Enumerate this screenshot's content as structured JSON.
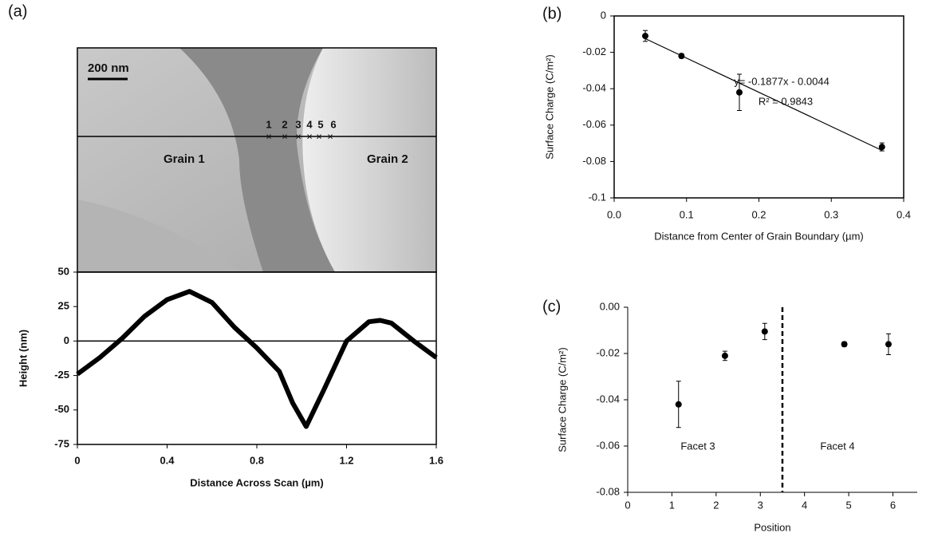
{
  "image": {
    "scale_bar": "200 nm",
    "labels": [
      "Grain 1",
      "Grain 2"
    ],
    "points": [
      "1",
      "2",
      "3",
      "4",
      "5",
      "6"
    ]
  },
  "chart_data": [
    {
      "type": "line",
      "panel": "(a)",
      "xlabel": "Distance Across Scan (µm)",
      "ylabel": "Height (nm)",
      "color": "#000000",
      "x": [
        0,
        0.1,
        0.2,
        0.3,
        0.4,
        0.5,
        0.6,
        0.7,
        0.8,
        0.9,
        0.96,
        1.02,
        1.1,
        1.2,
        1.3,
        1.35,
        1.4,
        1.5,
        1.6
      ],
      "values": [
        -24,
        -12,
        2,
        18,
        30,
        36,
        28,
        10,
        -5,
        -22,
        -45,
        -62,
        -35,
        0,
        14,
        15,
        13,
        0,
        -12
      ],
      "xlim": [
        0,
        1.6
      ],
      "xticks": [
        0,
        0.4,
        0.8,
        1.2,
        1.6
      ],
      "ylim": [
        -75,
        50
      ],
      "yticks": [
        -75,
        -50,
        -25,
        0,
        25,
        50
      ],
      "zero_line": true
    },
    {
      "type": "scatter",
      "panel": "(b)",
      "xlabel": "Distance from Center of Grain Boundary (µm)",
      "ylabel": "Surface Charge (C/m²)",
      "color": "#000000",
      "x": [
        0.043,
        0.093,
        0.173,
        0.37
      ],
      "values": [
        -0.011,
        -0.022,
        -0.042,
        -0.072
      ],
      "errors": [
        0.003,
        0.0012,
        0.01,
        0.0022
      ],
      "fit": {
        "x": [
          0.04,
          0.37
        ],
        "values": [
          -0.0119,
          -0.0739
        ]
      },
      "annotations": [
        "y= -0.1877x - 0.0044",
        "R² = 0.9843"
      ],
      "xlim": [
        0,
        0.4
      ],
      "xticks": [
        {
          "value": 0,
          "label": "0.0"
        },
        0.1,
        0.2,
        0.3,
        0.4
      ],
      "ylim": [
        -0.1,
        0
      ],
      "yticks": [
        0,
        -0.02,
        -0.04,
        -0.06,
        -0.08,
        -0.1
      ]
    },
    {
      "type": "scatter",
      "panel": "(c)",
      "xlabel": "Position",
      "ylabel": "Surface Charge (C/m²)",
      "color": "#000000",
      "x": [
        1.15,
        2.2,
        3.1,
        4.9,
        5.9
      ],
      "values": [
        -0.042,
        -0.021,
        -0.0105,
        -0.016,
        -0.016
      ],
      "errors": [
        0.01,
        0.002,
        0.0035,
        0.001,
        0.0045
      ],
      "vlines": [
        3.5
      ],
      "annotations": [
        "Facet 3",
        "Facet 4"
      ],
      "xlim": [
        0,
        6.55
      ],
      "xticks": [
        0,
        1,
        2,
        3,
        4,
        5,
        6
      ],
      "ylim": [
        -0.08,
        0
      ],
      "yticks": [
        {
          "value": 0,
          "label": "0.00"
        },
        {
          "value": -0.02,
          "label": "-0.02"
        },
        {
          "value": -0.04,
          "label": "-0.04"
        },
        {
          "value": -0.06,
          "label": "-0.06"
        },
        {
          "value": -0.08,
          "label": "-0.08"
        }
      ]
    }
  ]
}
